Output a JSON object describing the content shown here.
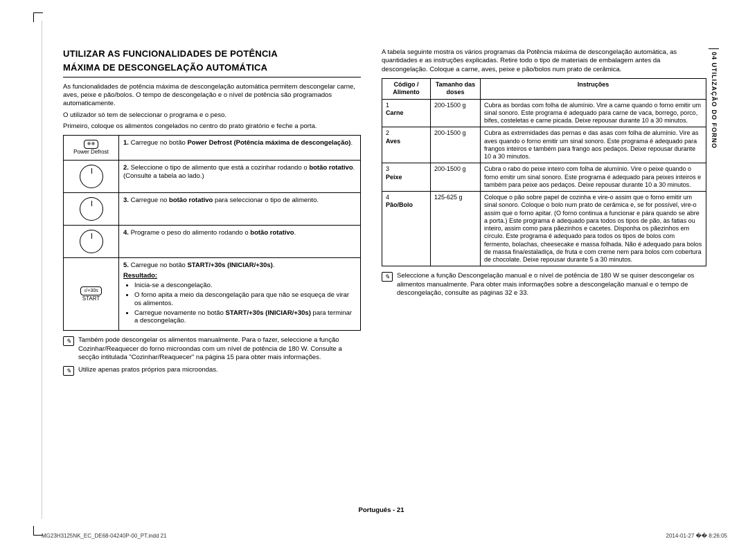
{
  "title_line1": "UTILIZAR AS FUNCIONALIDADES DE POTÊNCIA",
  "title_line2": "MÁXIMA DE DESCONGELAÇÃO AUTOMÁTICA",
  "intro1": "As funcionalidades de potência máxima de descongelação automática permitem descongelar carne, aves, peixe e pão/bolos. O tempo de descongelação e o nível de potência são programados automaticamente.",
  "intro2": "O utilizador só tem de seleccionar o programa e o peso.",
  "intro3": "Primeiro, coloque os alimentos congelados no centro do prato giratório e feche a porta.",
  "steps": {
    "s1": "Carregue no botão ",
    "s1b": "Power Defrost (Potência máxima de descongelação)",
    "s1c": ".",
    "s2a": "Seleccione o tipo de alimento que está a cozinhar rodando o ",
    "s2b": "botão rotativo",
    "s2c": ". (Consulte a tabela ao lado.)",
    "s3a": "Carregue no ",
    "s3b": "botão rotativo",
    "s3c": " para seleccionar o tipo de alimento.",
    "s4a": "Programe o peso do alimento rodando o ",
    "s4b": "botão rotativo",
    "s4c": ".",
    "s5a": "Carregue no botão ",
    "s5b": "START/+30s (INICIAR/+30s)",
    "s5c": ".",
    "s5_result": "Resultado:",
    "s5_b1": "Inicia-se a descongelação.",
    "s5_b2": "O forno apita a meio da descongelação para que não se esqueça de virar os alimentos.",
    "s5_b3a": "Carregue novamente no botão ",
    "s5_b3b": "START/+30s (INICIAR/+30s)",
    "s5_b3c": " para terminar a descongelação."
  },
  "icon_labels": {
    "power_defrost": "Power Defrost",
    "start": "START",
    "start_btn": "⬨/+30s"
  },
  "note1": "Também pode descongelar os alimentos manualmente. Para o fazer, seleccione a função Cozinhar/Reaquecer do forno microondas com um nível de potência de 180 W. Consulte a secção intitulada \"Cozinhar/Reaquecer\" na página 15 para obter mais informações.",
  "note2": "Utilize apenas pratos próprios para microondas.",
  "right_intro": "A tabela seguinte mostra os vários programas da Potência máxima de descongelação automática, as quantidades e as instruções explicadas. Retire todo o tipo de materiais de embalagem antes da descongelação. Coloque a carne, aves, peixe e pão/bolos num prato de cerâmica.",
  "table": {
    "h1": "Código / Alimento",
    "h2": "Tamanho das doses",
    "h3": "Instruções",
    "rows": [
      {
        "code": "1",
        "food": "Carne",
        "size": "200-1500 g",
        "instr": "Cubra as bordas com folha de alumínio. Vire a carne quando o forno emitir um sinal sonoro. Este programa é adequado para carne de vaca, borrego, porco, bifes, costeletas e carne picada. Deixe repousar durante 10 a 30 minutos."
      },
      {
        "code": "2",
        "food": "Aves",
        "size": "200-1500 g",
        "instr": "Cubra as extremidades das pernas e das asas com folha de alumínio. Vire as aves quando o forno emitir um sinal sonoro. Este programa é adequado para frangos inteiros e também para frango aos pedaços. Deixe repousar durante 10 a 30 minutos."
      },
      {
        "code": "3",
        "food": "Peixe",
        "size": "200-1500 g",
        "instr": "Cubra o rabo do peixe inteiro com folha de alumínio. Vire o peixe quando o forno emitir um sinal sonoro. Este programa é adequado para peixes inteiros e também para peixe aos pedaços.\nDeixe repousar durante 10 a 30 minutos."
      },
      {
        "code": "4",
        "food": "Pão/Bolo",
        "size": "125-625 g",
        "instr": "Coloque o pão sobre papel de cozinha e vire-o assim que o forno emitir um sinal sonoro. Coloque o bolo num prato de cerâmica e, se for possível, vire-o assim que o forno apitar. (O forno continua a funcionar e pára quando se abre a porta.) Este programa é adequado para todos os tipos de pão, às fatias ou inteiro, assim como para pãezinhos e cacetes. Disponha os pãezinhos em círculo. Este programa é adequado para todos os tipos de bolos com fermento, bolachas, cheesecake e massa folhada. Não é adequado para bolos de massa fina/estaladiça, de fruta e com creme nem para bolos com cobertura de chocolate. Deixe repousar durante 5 a 30 minutos."
      }
    ]
  },
  "right_note": "Seleccione a função Descongelação manual e o nível de potência de 180 W se quiser descongelar os alimentos manualmente. Para obter mais informações sobre a descongelação manual e o tempo de descongelação, consulte as páginas 32 e 33.",
  "side_tab": "04  UTILIZAÇÃO DO FORNO",
  "footer": "Português - 21",
  "meta_left": "MG23H3125NK_EC_DE68-04240P-00_PT.indd   21",
  "meta_right": "2014-01-27   �� 8:26:05"
}
